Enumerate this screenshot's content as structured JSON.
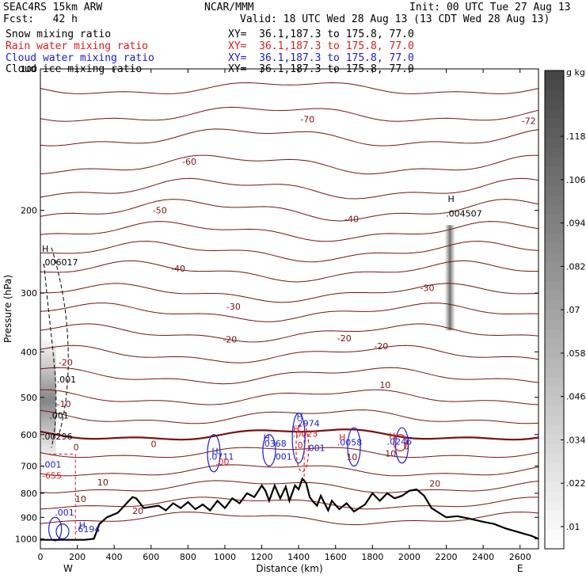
{
  "header": {
    "model": "SEAC4RS 15km ARW",
    "org": "NCAR/MMM",
    "init": "Init: 00 UTC Tue 27 Aug 13",
    "fcst": "Fcst:   42 h",
    "valid": "Valid: 18 UTC Wed 28 Aug 13 (13 CDT Wed 28 Aug 13)",
    "fields": [
      {
        "name": "Snow mixing ratio",
        "xy": "XY=  36.1,187.3 to 175.8, 77.0",
        "color": "#000000"
      },
      {
        "name": "Rain water mixing ratio",
        "xy": "XY=  36.1,187.3 to 175.8, 77.0",
        "color": "#e0191b"
      },
      {
        "name": "Cloud water mixing ratio",
        "xy": "XY=  36.1,187.3 to 175.8, 77.0",
        "color": "#1c1ccf"
      },
      {
        "name": "Cloud ice mixing ratio",
        "xy": "XY=  36.1,187.3 to 175.8, 77.0",
        "color": "#000000"
      }
    ]
  },
  "chart_data": {
    "type": "cross-section",
    "xlabel": "Distance (km)",
    "ylabel": "Pressure (hPa)",
    "xlim": [
      0,
      2700
    ],
    "ylim_hpa": [
      1050,
      100
    ],
    "y_log": true,
    "x_ticks": [
      0,
      200,
      400,
      600,
      800,
      1000,
      1200,
      1400,
      1600,
      1800,
      2000,
      2200,
      2400,
      2600
    ],
    "y_ticks": [
      100,
      200,
      300,
      400,
      500,
      600,
      700,
      800,
      900,
      1000
    ],
    "end_labels": {
      "west": "W",
      "east": "E"
    },
    "temperature_contours": [
      {
        "value": -70,
        "label": "-70"
      },
      {
        "value": -72,
        "label": "-72"
      },
      {
        "value": -60,
        "label": "-60"
      },
      {
        "value": -50,
        "label": "-50"
      },
      {
        "value": -40,
        "label": "-40"
      },
      {
        "value": -30,
        "label": "-30"
      },
      {
        "value": -20,
        "label": "-20"
      },
      {
        "value": -10,
        "label": "-10"
      },
      {
        "value": 0,
        "label": "0"
      },
      {
        "value": 10,
        "label": "10"
      },
      {
        "value": 20,
        "label": "20"
      }
    ],
    "terrain": [
      [
        0,
        1005
      ],
      [
        100,
        1005
      ],
      [
        240,
        1005
      ],
      [
        290,
        1000
      ],
      [
        320,
        930
      ],
      [
        360,
        900
      ],
      [
        420,
        880
      ],
      [
        480,
        830
      ],
      [
        500,
        815
      ],
      [
        520,
        820
      ],
      [
        560,
        860
      ],
      [
        600,
        855
      ],
      [
        640,
        850
      ],
      [
        680,
        870
      ],
      [
        720,
        840
      ],
      [
        760,
        860
      ],
      [
        800,
        835
      ],
      [
        840,
        865
      ],
      [
        880,
        845
      ],
      [
        920,
        870
      ],
      [
        960,
        830
      ],
      [
        1000,
        860
      ],
      [
        1040,
        820
      ],
      [
        1080,
        840
      ],
      [
        1120,
        800
      ],
      [
        1160,
        815
      ],
      [
        1200,
        770
      ],
      [
        1220,
        790
      ],
      [
        1240,
        830
      ],
      [
        1270,
        770
      ],
      [
        1300,
        820
      ],
      [
        1330,
        775
      ],
      [
        1350,
        830
      ],
      [
        1380,
        770
      ],
      [
        1400,
        785
      ],
      [
        1420,
        745
      ],
      [
        1440,
        760
      ],
      [
        1460,
        815
      ],
      [
        1480,
        835
      ],
      [
        1500,
        850
      ],
      [
        1520,
        810
      ],
      [
        1560,
        870
      ],
      [
        1580,
        830
      ],
      [
        1620,
        865
      ],
      [
        1660,
        840
      ],
      [
        1700,
        875
      ],
      [
        1760,
        845
      ],
      [
        1800,
        800
      ],
      [
        1840,
        830
      ],
      [
        1880,
        800
      ],
      [
        1920,
        820
      ],
      [
        1960,
        810
      ],
      [
        2000,
        790
      ],
      [
        2040,
        785
      ],
      [
        2080,
        810
      ],
      [
        2120,
        860
      ],
      [
        2160,
        880
      ],
      [
        2200,
        900
      ],
      [
        2260,
        895
      ],
      [
        2320,
        905
      ],
      [
        2400,
        920
      ],
      [
        2460,
        930
      ],
      [
        2520,
        950
      ],
      [
        2580,
        965
      ],
      [
        2620,
        975
      ],
      [
        2660,
        985
      ],
      [
        2700,
        1000
      ]
    ],
    "colorbar": {
      "unit": "g kg-1",
      "labels": [
        ".01",
        ".022",
        ".034",
        ".046",
        ".058",
        ".07",
        ".082",
        ".094",
        ".106",
        ".118"
      ]
    },
    "annotations": [
      {
        "text": "H",
        "x": 0,
        "p": 245,
        "color": "#000000"
      },
      {
        "text": ".006017",
        "x": 0,
        "p": 262,
        "color": "#000000"
      },
      {
        "text": ".001",
        "x": 80,
        "p": 465,
        "color": "#000000"
      },
      {
        "text": ".001",
        "x": 40,
        "p": 555,
        "color": "#000000"
      },
      {
        "text": ".00296",
        "x": 0,
        "p": 615,
        "color": "#000000"
      },
      {
        "text": "-20",
        "x": 90,
        "p": 428,
        "color": "#7a1212"
      },
      {
        "text": "-10",
        "x": 80,
        "p": 524,
        "color": "#7a1212"
      },
      {
        "text": "0",
        "x": 170,
        "p": 648,
        "color": "#7a1212"
      },
      {
        "text": "0",
        "x": 590,
        "p": 638,
        "color": "#7a1212"
      },
      {
        "text": "0",
        "x": 1960,
        "p": 645,
        "color": "#7a1212"
      },
      {
        "text": "10",
        "x": 1650,
        "p": 680,
        "color": "#7a1212"
      },
      {
        "text": "10",
        "x": 1860,
        "p": 668,
        "color": "#7a1212"
      },
      {
        "text": "10",
        "x": 1830,
        "p": 478,
        "color": "#7a1212"
      },
      {
        "text": "10",
        "x": 300,
        "p": 770,
        "color": "#7a1212"
      },
      {
        "text": "10",
        "x": 180,
        "p": 835,
        "color": "#7a1212"
      },
      {
        "text": "20",
        "x": 2100,
        "p": 775,
        "color": "#7a1212"
      },
      {
        "text": "20",
        "x": 490,
        "p": 885,
        "color": "#7a1212"
      },
      {
        "text": "-20",
        "x": 1600,
        "p": 380,
        "color": "#7a1212"
      },
      {
        "text": "-20",
        "x": 1800,
        "p": 395,
        "color": "#7a1212"
      },
      {
        "text": "-20",
        "x": 980,
        "p": 382,
        "color": "#7a1212"
      },
      {
        "text": "-30",
        "x": 1000,
        "p": 325,
        "color": "#7a1212"
      },
      {
        "text": "-30",
        "x": 2050,
        "p": 297,
        "color": "#7a1212"
      },
      {
        "text": "-40",
        "x": 1640,
        "p": 212,
        "color": "#7a1212"
      },
      {
        "text": "-40",
        "x": 700,
        "p": 270,
        "color": "#7a1212"
      },
      {
        "text": "-50",
        "x": 600,
        "p": 203,
        "color": "#7a1212"
      },
      {
        "text": "-60",
        "x": 760,
        "p": 160,
        "color": "#7a1212"
      },
      {
        "text": "-70",
        "x": 1400,
        "p": 130,
        "color": "#7a1212"
      },
      {
        "text": "-72",
        "x": 2600,
        "p": 131,
        "color": "#7a1212"
      },
      {
        "text": "-655",
        "x": 0,
        "p": 745,
        "color": "#e0191b"
      },
      {
        "text": "H",
        "x": 2200,
        "p": 192,
        "color": "#000000"
      },
      {
        "text": ".004507",
        "x": 2190,
        "p": 206,
        "color": "#000000"
      },
      {
        "text": ".001",
        "x": 0,
        "p": 705,
        "color": "#1c1ccf"
      },
      {
        "text": "H",
        "x": 920,
        "p": 660,
        "color": "#1c1ccf"
      },
      {
        "text": ".0711",
        "x": 905,
        "p": 678,
        "color": "#1c1ccf"
      },
      {
        "text": ".00",
        "x": 940,
        "p": 696,
        "color": "#e0191b"
      },
      {
        "text": "H",
        "x": 1200,
        "p": 618,
        "color": "#1c1ccf"
      },
      {
        "text": ".0368",
        "x": 1190,
        "p": 636,
        "color": "#1c1ccf"
      },
      {
        "text": ".001",
        "x": 1250,
        "p": 678,
        "color": "#1c1ccf"
      },
      {
        "text": "H",
        "x": 1380,
        "p": 558,
        "color": "#1c1ccf"
      },
      {
        "text": ".2974",
        "x": 1370,
        "p": 576,
        "color": "#1c1ccf"
      },
      {
        "text": "H",
        "x": 1360,
        "p": 592,
        "color": "#e0191b"
      },
      {
        "text": ".0023",
        "x": 1360,
        "p": 606,
        "color": "#e0191b"
      },
      {
        "text": ".001",
        "x": 1430,
        "p": 650,
        "color": "#1c1ccf"
      },
      {
        "text": ".0",
        "x": 1370,
        "p": 642,
        "color": "#e0191b"
      },
      {
        "text": "H",
        "x": 1610,
        "p": 617,
        "color": "#e0191b"
      },
      {
        "text": ".0058",
        "x": 1600,
        "p": 633,
        "color": "#1c1ccf"
      },
      {
        "text": "H",
        "x": 1880,
        "p": 614,
        "color": "#e0191b"
      },
      {
        "text": ".0246",
        "x": 1870,
        "p": 630,
        "color": "#1c1ccf"
      },
      {
        "text": ".001",
        "x": 70,
        "p": 892,
        "color": "#1c1ccf"
      },
      {
        "text": "H",
        "x": 200,
        "p": 950,
        "color": "#1c1ccf"
      },
      {
        "text": ".6194",
        "x": 180,
        "p": 968,
        "color": "#1c1ccf"
      }
    ]
  }
}
